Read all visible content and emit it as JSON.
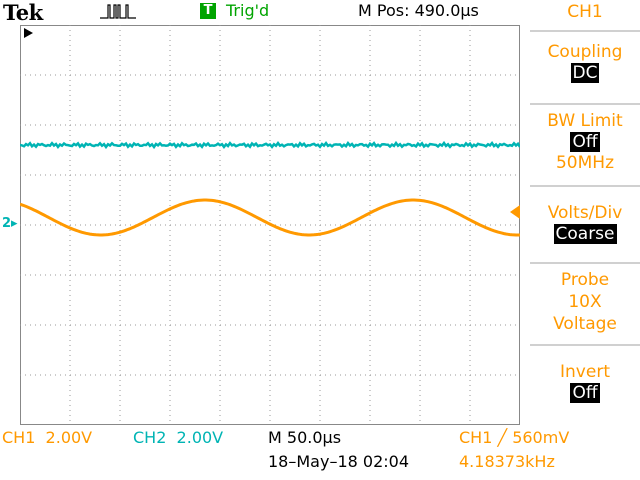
{
  "header": {
    "brand": "Tek",
    "trigger_badge": "T",
    "trigger_status": "Trig'd",
    "m_pos": "M Pos: 490.0µs"
  },
  "menu": {
    "title": "CH1",
    "coupling": {
      "label": "Coupling",
      "value": "DC"
    },
    "bw_limit": {
      "label": "BW Limit",
      "value": "Off",
      "sub": "50MHz"
    },
    "volts_div": {
      "label": "Volts/Div",
      "value": "Coarse"
    },
    "probe": {
      "label": "Probe",
      "value1": "10X",
      "value2": "Voltage"
    },
    "invert": {
      "label": "Invert",
      "value": "Off"
    }
  },
  "status": {
    "ch1": "CH1  2.00V",
    "ch2": "CH2  2.00V",
    "timebase": "M 50.0µs",
    "date": "18–May–18 02:04",
    "trigger": "CH1 ╱ 560mV",
    "frequency": "4.18373kHz"
  },
  "markers": {
    "ch2_marker": "2"
  },
  "colors": {
    "ch1": "#ff9900",
    "ch2": "#00b4b4",
    "trigger_green": "#00a400",
    "grid": "#888888"
  },
  "waveforms": {
    "ch1": {
      "type": "sine",
      "cycles_on_screen": 2.4,
      "amplitude_div": 0.35,
      "offset_div": 0.15
    },
    "ch2": {
      "type": "flat-noisy",
      "offset_div": 1.6
    }
  }
}
